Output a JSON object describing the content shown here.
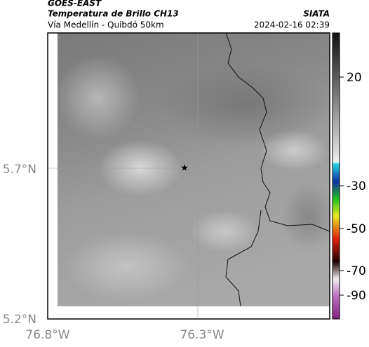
{
  "header": {
    "title": "GOES-EAST",
    "subtitle": "Temperatura de Brillo CH13",
    "location": "Vía Medellín - Quibdó 50km",
    "source": "SIATA",
    "datetime": "2024-02-16 02:39"
  },
  "map": {
    "lat_labels": [
      "5.7°N",
      "5.2°N"
    ],
    "lon_labels": [
      "76.8°W",
      "76.3°W"
    ]
  },
  "colorbar": {
    "ticks": [
      20,
      -30,
      -50,
      -70,
      -90
    ]
  }
}
